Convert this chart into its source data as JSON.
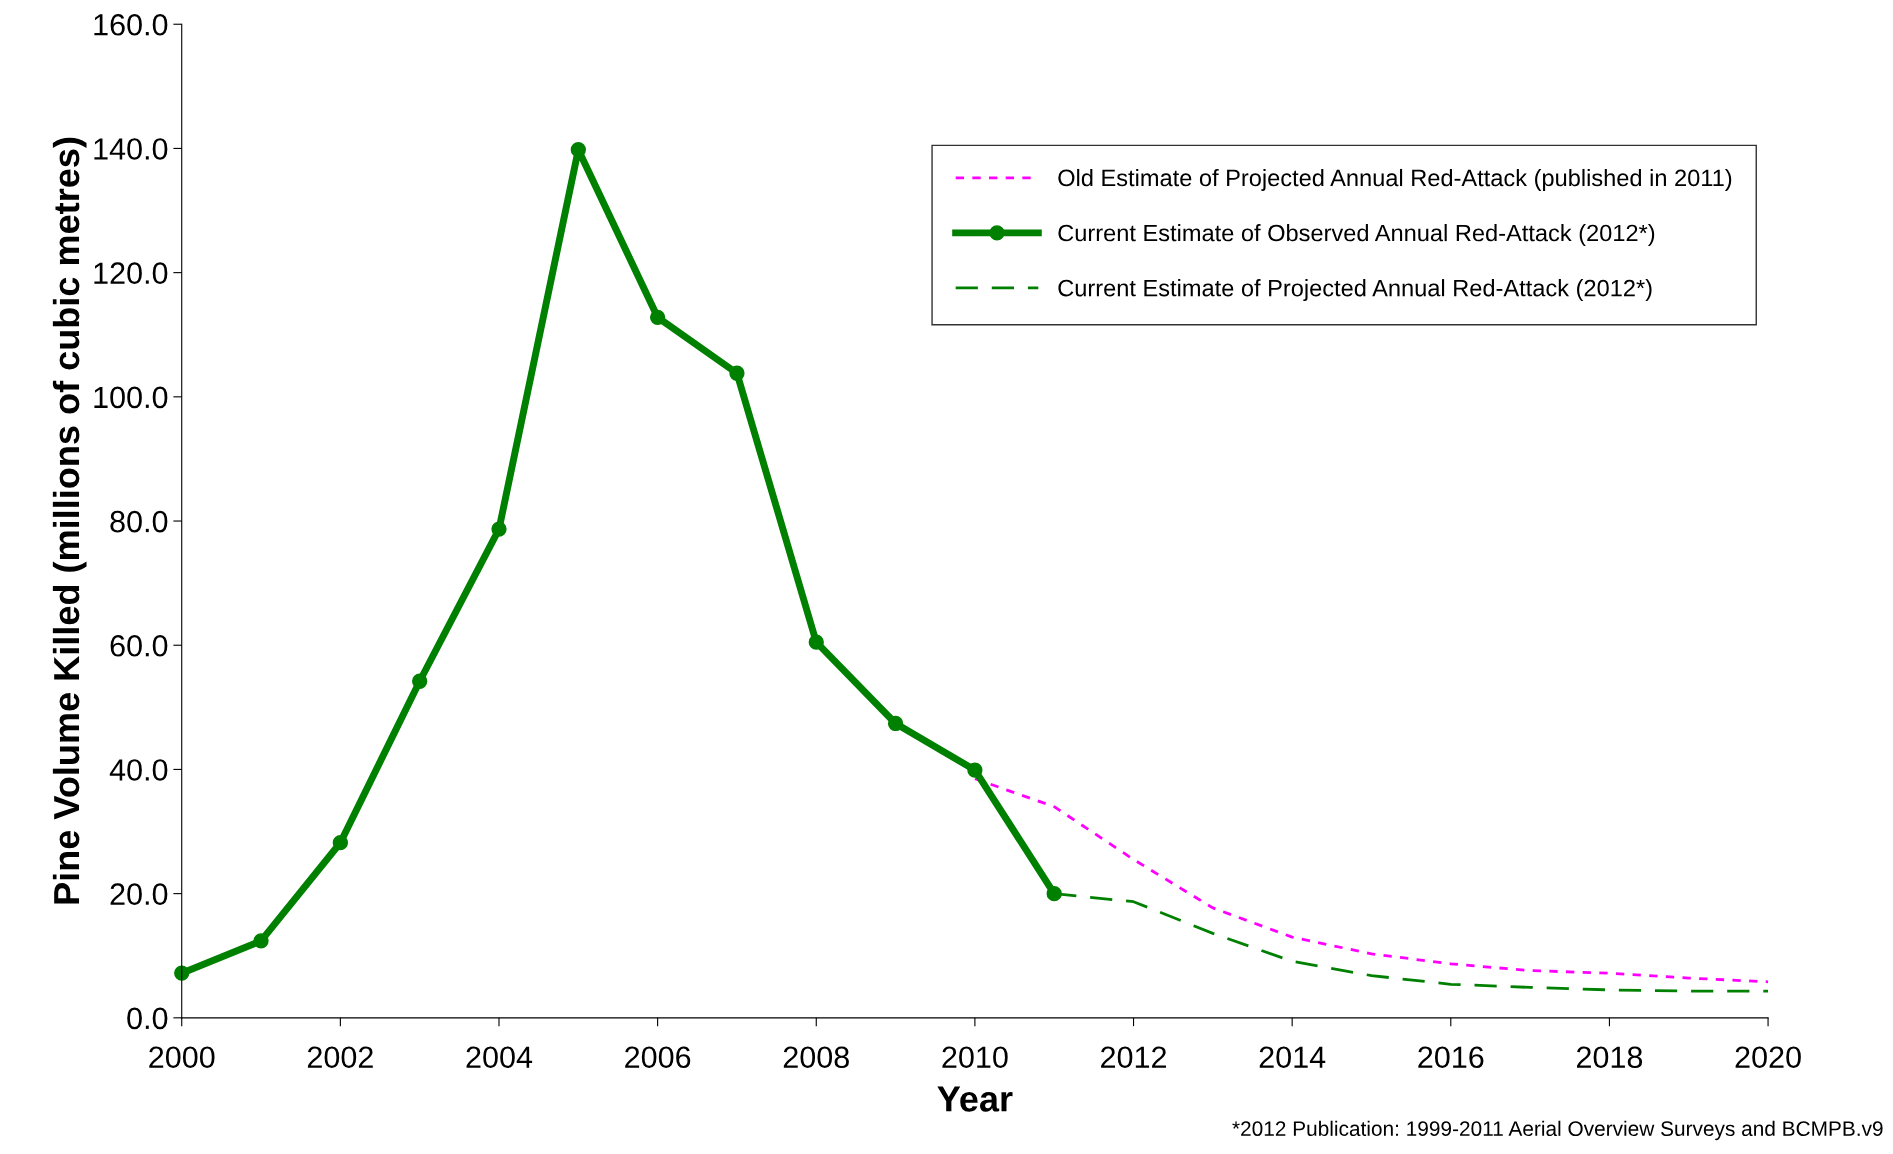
{
  "chart_data": {
    "type": "line",
    "xlabel": "Year",
    "ylabel": "Pine Volume Killed (millions of cubic metres)",
    "xlim": [
      2000,
      2020
    ],
    "xticks": [
      2000,
      2002,
      2004,
      2006,
      2008,
      2010,
      2012,
      2014,
      2016,
      2018,
      2020
    ],
    "ylim": [
      0,
      160
    ],
    "yticks": [
      {
        "value": 0,
        "label": "0.0"
      },
      {
        "value": 20,
        "label": "20.0"
      },
      {
        "value": 40,
        "label": "40.0"
      },
      {
        "value": 60,
        "label": "60.0"
      },
      {
        "value": 80,
        "label": "80.0"
      },
      {
        "value": 100,
        "label": "100.0"
      },
      {
        "value": 120,
        "label": "120.0"
      },
      {
        "value": 140,
        "label": "140.0"
      },
      {
        "value": 160,
        "label": "160.0"
      }
    ],
    "grid": false,
    "legend": "top right",
    "series": [
      {
        "name": "Old Estimate of Projected Annual Red-Attack (published in 2011)",
        "color": "#ff00ff",
        "line_style": "dotted",
        "marker": "none",
        "x": [
          2010,
          2011,
          2012,
          2013,
          2014,
          2015,
          2016,
          2017,
          2018,
          2019,
          2020
        ],
        "values": [
          38.5,
          34.0,
          25.5,
          17.7,
          13.0,
          10.3,
          8.7,
          7.6,
          7.2,
          6.4,
          5.8
        ]
      },
      {
        "name": "Current Estimate of Observed Annual Red-Attack (2012*)",
        "color": "#008000",
        "line_style": "solid",
        "marker": "circle",
        "x": [
          2000,
          2001,
          2002,
          2003,
          2004,
          2005,
          2006,
          2007,
          2008,
          2009,
          2010,
          2011
        ],
        "values": [
          7.2,
          12.4,
          28.2,
          54.2,
          78.7,
          139.8,
          112.8,
          103.8,
          60.5,
          47.4,
          39.9,
          20.0
        ]
      },
      {
        "name": "Current Estimate of Projected Annual Red-Attack (2012*)",
        "color": "#008000",
        "line_style": "dashed",
        "marker": "none",
        "x": [
          2011,
          2012,
          2013,
          2014,
          2015,
          2016,
          2017,
          2018,
          2019,
          2020
        ],
        "values": [
          20.0,
          18.7,
          13.6,
          9.1,
          6.8,
          5.4,
          4.9,
          4.5,
          4.3,
          4.3
        ]
      }
    ],
    "annotations": [
      "*2012 Publication: 1999-2011 Aerial Overview Surveys and BCMPB.v9"
    ]
  }
}
